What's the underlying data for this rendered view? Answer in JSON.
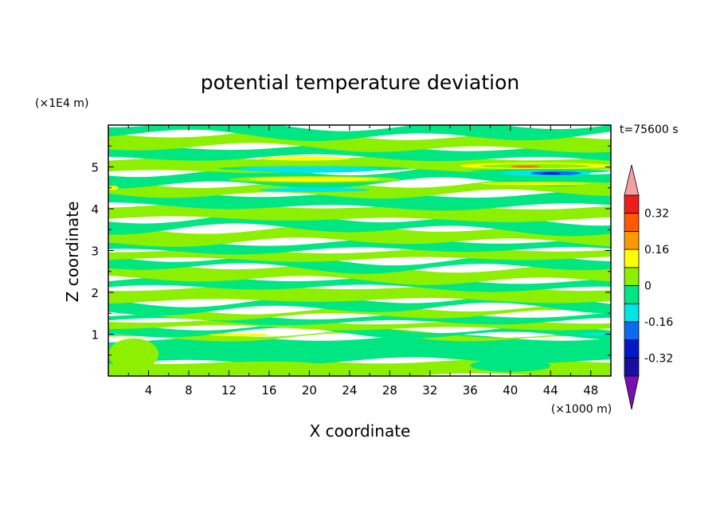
{
  "chart_data": {
    "type": "heatmap",
    "title": "potential temperature deviation",
    "xlabel": "X coordinate",
    "ylabel": "Z coordinate",
    "x_unit": "(×1000 m)",
    "y_unit": "(×1E4 m)",
    "time_label": "t=75600 s",
    "xlim": [
      0,
      50
    ],
    "ylim": [
      0,
      6
    ],
    "x_ticks": [
      4,
      8,
      12,
      16,
      20,
      24,
      28,
      32,
      36,
      40,
      44,
      48
    ],
    "y_ticks": [
      1,
      2,
      3,
      4,
      5
    ],
    "colorbar": {
      "levels": [
        -0.4,
        -0.32,
        -0.24,
        -0.16,
        -0.08,
        0,
        0.08,
        0.16,
        0.24,
        0.32,
        0.4
      ],
      "labels": [
        "0.32",
        "0.16",
        "0",
        "-0.16",
        "-0.32"
      ],
      "label_values": [
        0.32,
        0.16,
        0,
        -0.16,
        -0.32
      ],
      "colors": [
        "#1a0ea0",
        "#0018c8",
        "#0a6af0",
        "#00e6e6",
        "#00e683",
        "#8cf000",
        "#ffff00",
        "#ff9900",
        "#ff5a00",
        "#ee1c1c"
      ],
      "under_color": "#7a10b4",
      "over_color": "#f4a0a0"
    },
    "bands": [
      {
        "z0": 0.0,
        "z1": 0.35,
        "value": 0.03
      },
      {
        "z0": 0.35,
        "z1": 0.9,
        "value": -0.02
      },
      {
        "z0": 0.9,
        "z1": 1.0,
        "value": 0.03
      },
      {
        "z0": 1.0,
        "z1": 1.15,
        "value": -0.03
      },
      {
        "z0": 1.15,
        "z1": 1.3,
        "value": 0.03
      },
      {
        "z0": 1.3,
        "z1": 1.45,
        "value": -0.03
      },
      {
        "z0": 1.45,
        "z1": 1.6,
        "value": 0.03
      },
      {
        "z0": 1.6,
        "z1": 1.8,
        "value": -0.03
      },
      {
        "z0": 1.8,
        "z1": 2.1,
        "value": 0.03
      },
      {
        "z0": 2.1,
        "z1": 2.3,
        "value": -0.03
      },
      {
        "z0": 2.3,
        "z1": 2.6,
        "value": 0.03
      },
      {
        "z0": 2.6,
        "z1": 2.8,
        "value": -0.03
      },
      {
        "z0": 2.8,
        "z1": 3.0,
        "value": 0.03
      },
      {
        "z0": 3.0,
        "z1": 3.2,
        "value": -0.03
      },
      {
        "z0": 3.2,
        "z1": 3.5,
        "value": 0.03
      },
      {
        "z0": 3.5,
        "z1": 3.75,
        "value": -0.03
      },
      {
        "z0": 3.75,
        "z1": 4.05,
        "value": 0.03
      },
      {
        "z0": 4.05,
        "z1": 4.35,
        "value": -0.03
      },
      {
        "z0": 4.35,
        "z1": 4.6,
        "value": 0.03
      },
      {
        "z0": 4.6,
        "z1": 4.9,
        "value": -0.03
      },
      {
        "z0": 4.9,
        "z1": 5.2,
        "value": 0.03
      },
      {
        "z0": 5.2,
        "z1": 5.45,
        "value": -0.03
      },
      {
        "z0": 5.45,
        "z1": 5.75,
        "value": 0.03
      },
      {
        "z0": 5.75,
        "z1": 6.0,
        "value": -0.03
      }
    ],
    "features": [
      {
        "x0": 0,
        "x1": 5,
        "z0": 0.15,
        "z1": 0.9,
        "value": 0.03
      },
      {
        "x0": 10,
        "x1": 22,
        "z0": 0.1,
        "z1": 0.35,
        "value": 0.03
      },
      {
        "x0": 36,
        "x1": 44,
        "z0": 0.1,
        "z1": 0.4,
        "value": -0.02
      },
      {
        "x0": 13,
        "x1": 25,
        "z0": 5.05,
        "z1": 5.2,
        "value": 0.03
      },
      {
        "x0": 15,
        "x1": 24,
        "z0": 5.15,
        "z1": 5.25,
        "value": 0.15
      },
      {
        "x0": 11,
        "x1": 30,
        "z0": 4.9,
        "z1": 5.02,
        "value": -0.03
      },
      {
        "x0": 13,
        "x1": 27,
        "z0": 4.86,
        "z1": 5.02,
        "value": -0.1
      },
      {
        "x0": 12,
        "x1": 29,
        "z0": 4.62,
        "z1": 4.78,
        "value": 0.03
      },
      {
        "x0": 14,
        "x1": 27,
        "z0": 4.65,
        "z1": 4.76,
        "value": 0.12
      },
      {
        "x0": 15,
        "x1": 26,
        "z0": 4.4,
        "z1": 4.5,
        "value": -0.1
      },
      {
        "x0": 35,
        "x1": 50,
        "z0": 4.95,
        "z1": 5.1,
        "value": 0.12
      },
      {
        "x0": 37,
        "x1": 48,
        "z0": 4.97,
        "z1": 5.07,
        "value": 0.05
      },
      {
        "x0": 40,
        "x1": 43,
        "z0": 4.99,
        "z1": 5.03,
        "value": 0.3
      },
      {
        "x0": 36,
        "x1": 50,
        "z0": 4.85,
        "z1": 4.95,
        "value": -0.03
      },
      {
        "x0": 39,
        "x1": 48,
        "z0": 4.78,
        "z1": 4.92,
        "value": -0.1
      },
      {
        "x0": 42,
        "x1": 47,
        "z0": 4.8,
        "z1": 4.9,
        "value": -0.2
      },
      {
        "x0": 43,
        "x1": 45,
        "z0": 4.82,
        "z1": 4.87,
        "value": -0.28
      },
      {
        "x0": 36,
        "x1": 50,
        "z0": 4.55,
        "z1": 4.65,
        "value": 0.03
      },
      {
        "x0": 37,
        "x1": 48,
        "z0": 4.57,
        "z1": 4.63,
        "value": 0.12
      },
      {
        "x0": 0,
        "x1": 1,
        "z0": 4.45,
        "z1": 4.55,
        "value": 0.12
      },
      {
        "x0": 10,
        "x1": 16,
        "z0": 0.95,
        "z1": 1.02,
        "value": 0.12
      },
      {
        "x0": 0,
        "x1": 1,
        "z0": 0.97,
        "z1": 1.03,
        "value": -0.1
      },
      {
        "x0": 47,
        "x1": 50,
        "z0": 0.97,
        "z1": 1.03,
        "value": -0.1
      }
    ]
  }
}
